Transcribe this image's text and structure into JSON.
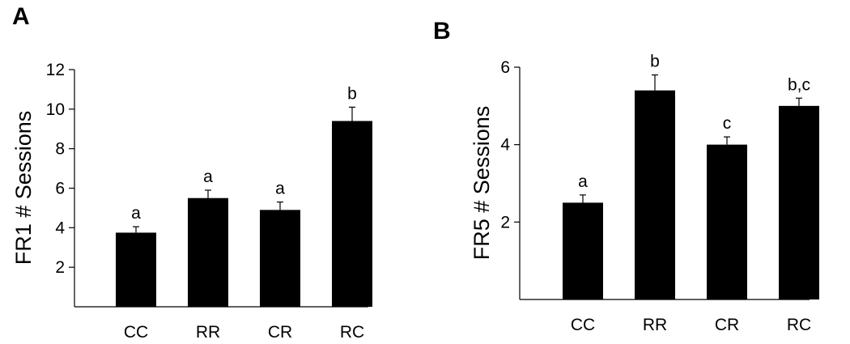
{
  "chart_data": [
    {
      "type": "bar",
      "panel_label": "A",
      "categories": [
        "CC",
        "RR",
        "CR",
        "RC"
      ],
      "values": [
        3.75,
        5.5,
        4.9,
        9.4
      ],
      "errors": [
        0.3,
        0.4,
        0.4,
        0.7
      ],
      "significance": [
        "a",
        "a",
        "a",
        "b"
      ],
      "ylabel": "FR1 # Sessions",
      "xlabel": "",
      "ylim": [
        0,
        12
      ],
      "yticks": [
        2,
        4,
        6,
        8,
        10,
        12
      ],
      "bar_color": "#000000",
      "grid": false
    },
    {
      "type": "bar",
      "panel_label": "B",
      "categories": [
        "CC",
        "RR",
        "CR",
        "RC"
      ],
      "values": [
        2.5,
        5.4,
        4.0,
        5.0
      ],
      "errors": [
        0.2,
        0.4,
        0.2,
        0.2
      ],
      "significance": [
        "a",
        "b",
        "c",
        "b,c"
      ],
      "ylabel": "FR5 # Sessions",
      "xlabel": "",
      "ylim": [
        0,
        6
      ],
      "yticks": [
        2,
        4,
        6
      ],
      "bar_color": "#000000",
      "grid": false
    }
  ]
}
